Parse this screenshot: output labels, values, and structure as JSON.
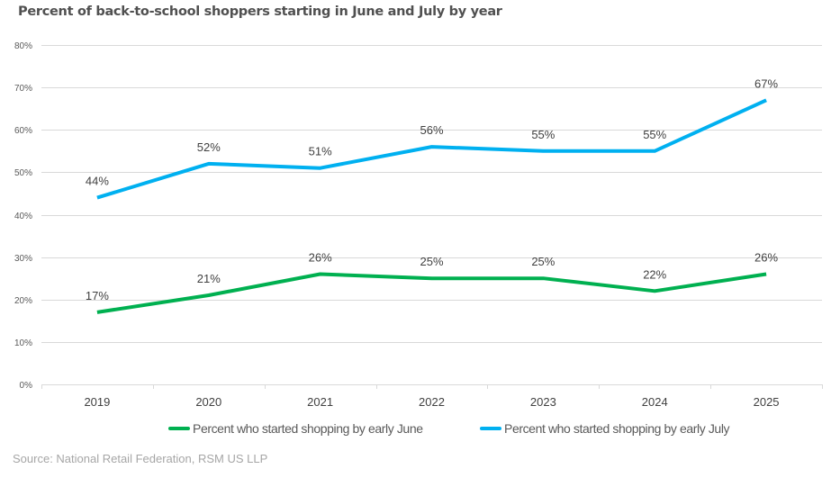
{
  "chart_data": {
    "type": "line",
    "title": "Percent of back-to-school shoppers starting in June and July by year",
    "xlabel": "",
    "ylabel": "",
    "categories": [
      "2019",
      "2020",
      "2021",
      "2022",
      "2023",
      "2024",
      "2025"
    ],
    "ylim": [
      0,
      80
    ],
    "yticks": [
      0,
      10,
      20,
      30,
      40,
      50,
      60,
      70,
      80
    ],
    "ytick_labels": [
      "0%",
      "10%",
      "20%",
      "30%",
      "40%",
      "50%",
      "60%",
      "70%",
      "80%"
    ],
    "grid": true,
    "legend_position": "bottom",
    "series": [
      {
        "name": "Percent who started shopping by early June",
        "color": "#00b050",
        "values": [
          17,
          21,
          26,
          25,
          25,
          22,
          26
        ],
        "labels": [
          "17%",
          "21%",
          "26%",
          "25%",
          "25%",
          "22%",
          "26%"
        ]
      },
      {
        "name": "Percent who started shopping by early July",
        "color": "#00b0f0",
        "values": [
          44,
          52,
          51,
          56,
          55,
          55,
          67
        ],
        "labels": [
          "44%",
          "52%",
          "51%",
          "56%",
          "55%",
          "55%",
          "67%"
        ]
      }
    ]
  },
  "footer": {
    "source": "Source: National Retail Federation, RSM US LLP"
  }
}
